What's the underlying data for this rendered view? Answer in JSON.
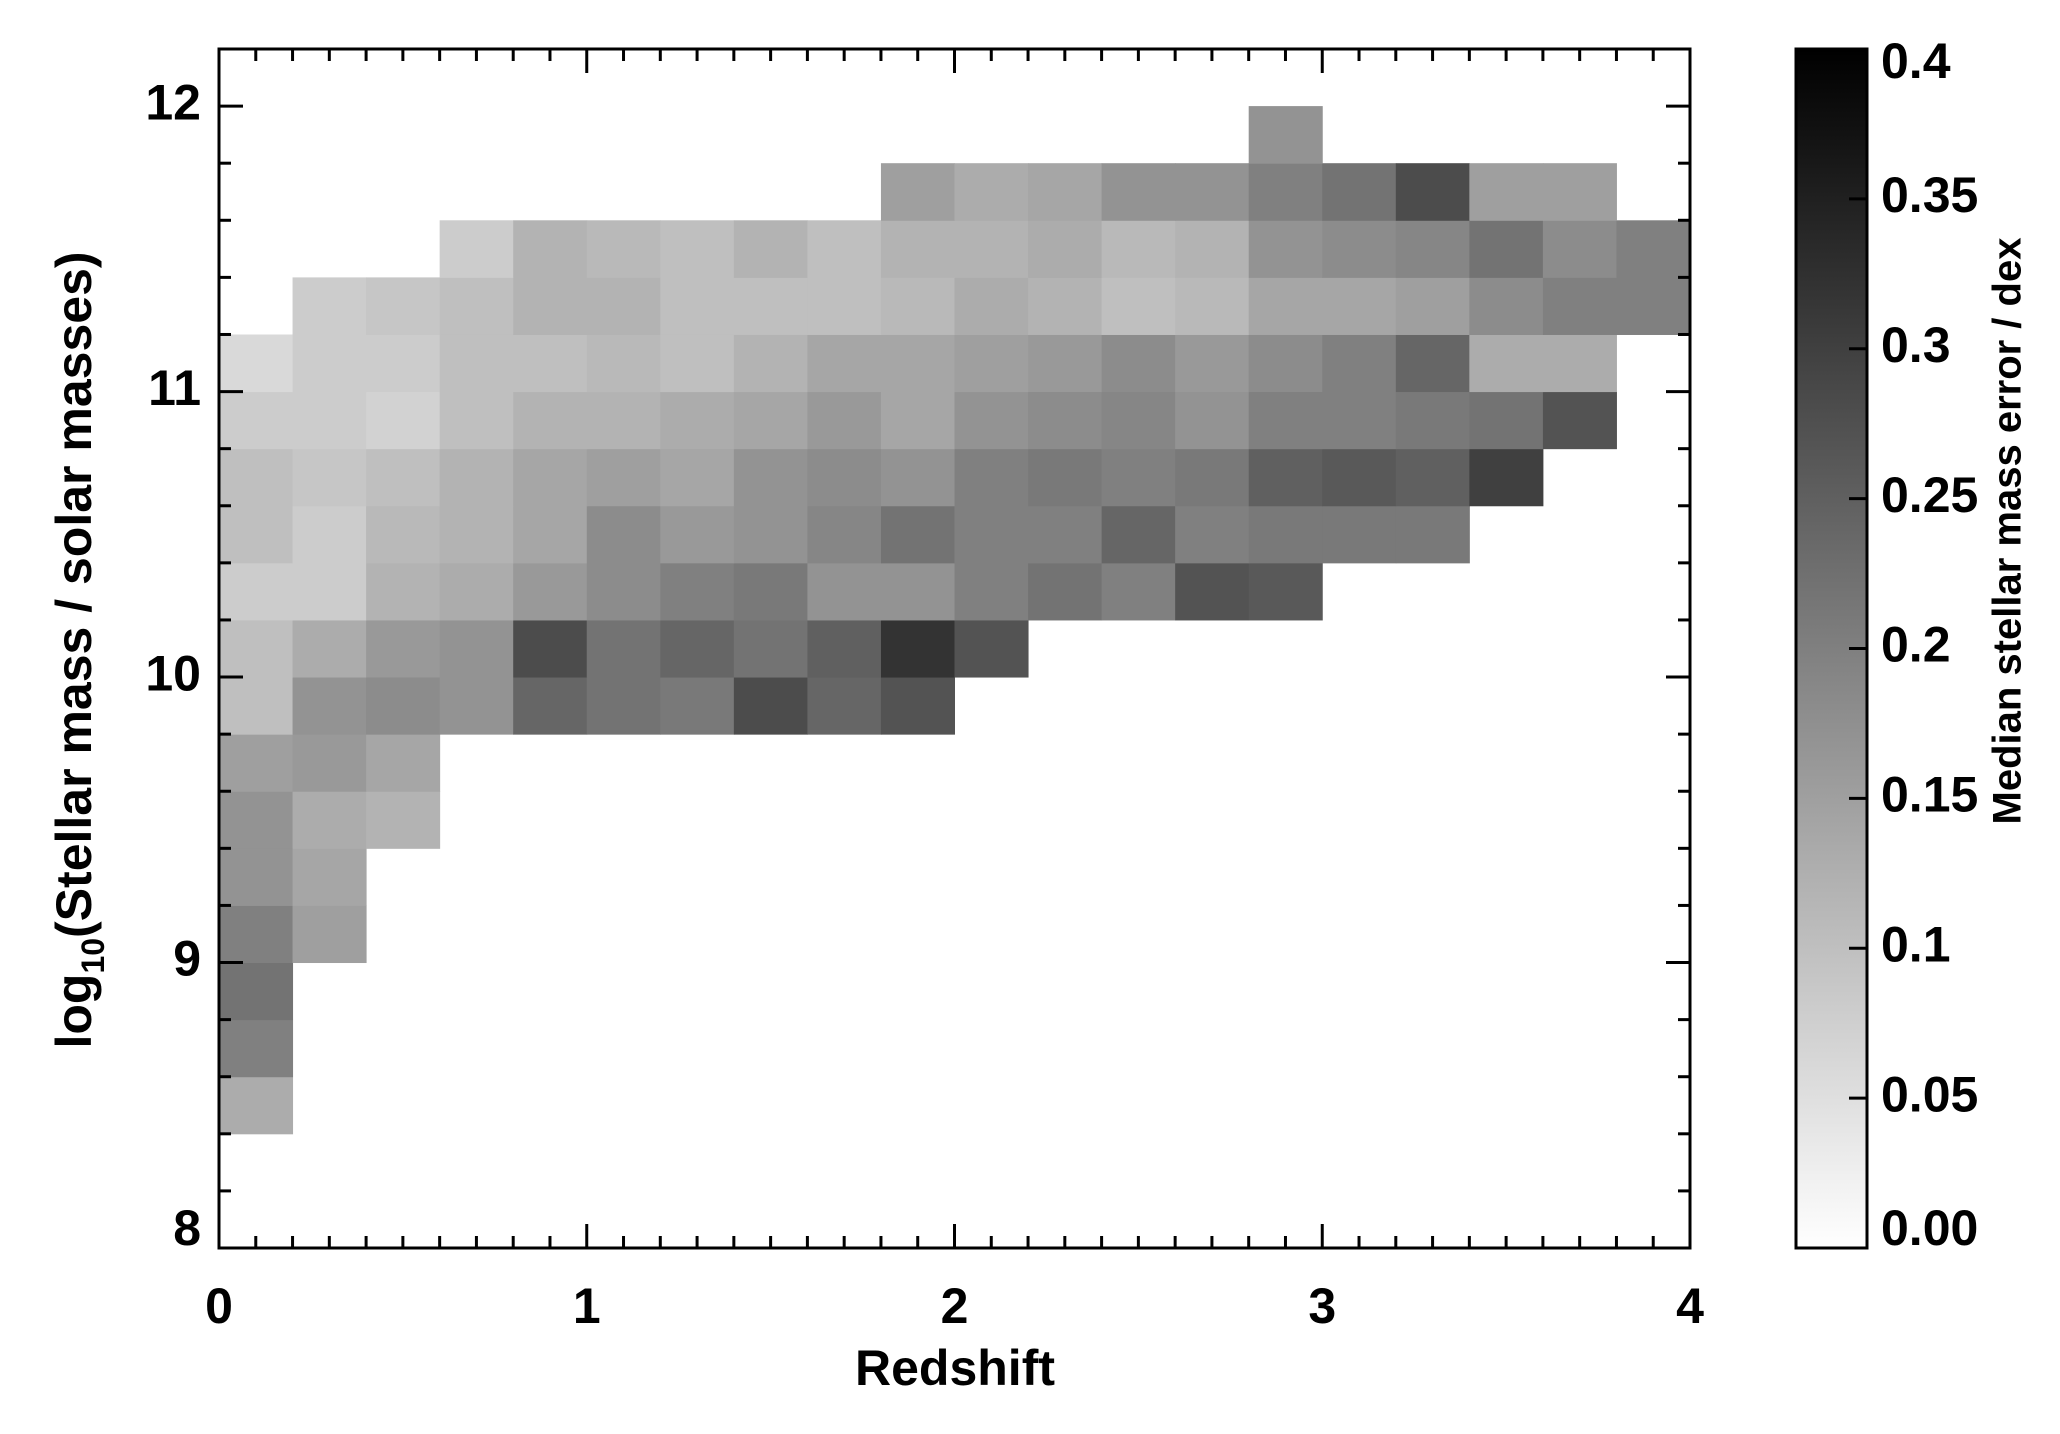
{
  "chart_data": {
    "type": "heatmap",
    "xlabel": "Redshift",
    "ylabel_parts": [
      "log",
      "10",
      "(Stellar mass / solar masses)"
    ],
    "xlim": [
      0,
      4
    ],
    "ylim": [
      8,
      12.2
    ],
    "xticks": [
      0,
      1,
      2,
      3,
      4
    ],
    "yticks": [
      8,
      9,
      10,
      11,
      12
    ],
    "xminorticks": [
      0.1,
      0.2,
      0.3,
      0.4,
      0.5,
      0.6,
      0.7,
      0.8,
      0.9,
      1.1,
      1.2,
      1.3,
      1.4,
      1.5,
      1.6,
      1.7,
      1.8,
      1.9,
      2.1,
      2.2,
      2.3,
      2.4,
      2.5,
      2.6,
      2.7,
      2.8,
      2.9,
      3.1,
      3.2,
      3.3,
      3.4,
      3.5,
      3.6,
      3.7,
      3.8,
      3.9
    ],
    "yminorticks": [
      8.2,
      8.4,
      8.6,
      8.8,
      9.2,
      9.4,
      9.6,
      9.8,
      10.2,
      10.4,
      10.6,
      10.8,
      11.2,
      11.4,
      11.6,
      11.8
    ],
    "x_edges": [
      0,
      0.2,
      0.4,
      0.6,
      0.8,
      1.0,
      1.2,
      1.4,
      1.6,
      1.8,
      2.0,
      2.2,
      2.4,
      2.6,
      2.8,
      3.0,
      3.2,
      3.4,
      3.6,
      3.8,
      4.0
    ],
    "y_edges": [
      8.4,
      8.6,
      8.8,
      9.0,
      9.2,
      9.4,
      9.6,
      9.8,
      10.0,
      10.2,
      10.4,
      10.6,
      10.8,
      11.0,
      11.2,
      11.4,
      11.6,
      11.8,
      12.0
    ],
    "values": [
      [
        0.13,
        null,
        null,
        null,
        null,
        null,
        null,
        null,
        null,
        null,
        null,
        null,
        null,
        null,
        null,
        null,
        null,
        null,
        null,
        null
      ],
      [
        0.2,
        null,
        null,
        null,
        null,
        null,
        null,
        null,
        null,
        null,
        null,
        null,
        null,
        null,
        null,
        null,
        null,
        null,
        null,
        null
      ],
      [
        0.22,
        null,
        null,
        null,
        null,
        null,
        null,
        null,
        null,
        null,
        null,
        null,
        null,
        null,
        null,
        null,
        null,
        null,
        null,
        null
      ],
      [
        0.2,
        0.15,
        null,
        null,
        null,
        null,
        null,
        null,
        null,
        null,
        null,
        null,
        null,
        null,
        null,
        null,
        null,
        null,
        null,
        null
      ],
      [
        0.17,
        0.14,
        null,
        null,
        null,
        null,
        null,
        null,
        null,
        null,
        null,
        null,
        null,
        null,
        null,
        null,
        null,
        null,
        null,
        null
      ],
      [
        0.17,
        0.13,
        0.12,
        null,
        null,
        null,
        null,
        null,
        null,
        null,
        null,
        null,
        null,
        null,
        null,
        null,
        null,
        null,
        null,
        null
      ],
      [
        0.15,
        0.16,
        0.14,
        null,
        null,
        null,
        null,
        null,
        null,
        null,
        null,
        null,
        null,
        null,
        null,
        null,
        null,
        null,
        null,
        null
      ],
      [
        0.1,
        0.17,
        0.18,
        0.17,
        0.24,
        0.22,
        0.21,
        0.28,
        0.24,
        0.27,
        null,
        null,
        null,
        null,
        null,
        null,
        null,
        null,
        null,
        null
      ],
      [
        0.1,
        0.13,
        0.16,
        0.17,
        0.28,
        0.22,
        0.24,
        0.22,
        0.25,
        0.32,
        0.27,
        null,
        null,
        null,
        null,
        null,
        null,
        null,
        null,
        null
      ],
      [
        0.08,
        0.08,
        0.12,
        0.13,
        0.16,
        0.18,
        0.2,
        0.21,
        0.17,
        0.17,
        0.2,
        0.22,
        0.2,
        0.27,
        0.26,
        null,
        null,
        null,
        null,
        null
      ],
      [
        0.1,
        0.08,
        0.11,
        0.12,
        0.14,
        0.18,
        0.16,
        0.17,
        0.19,
        0.22,
        0.2,
        0.2,
        0.24,
        0.2,
        0.21,
        0.21,
        0.21,
        null,
        null,
        null
      ],
      [
        0.1,
        0.09,
        0.1,
        0.12,
        0.14,
        0.15,
        0.14,
        0.17,
        0.18,
        0.17,
        0.2,
        0.21,
        0.2,
        0.21,
        0.25,
        0.26,
        0.25,
        0.3,
        null,
        null
      ],
      [
        0.08,
        0.08,
        0.07,
        0.1,
        0.12,
        0.12,
        0.13,
        0.14,
        0.16,
        0.14,
        0.17,
        0.18,
        0.19,
        0.17,
        0.2,
        0.2,
        0.21,
        0.22,
        0.27,
        null
      ],
      [
        0.06,
        0.08,
        0.08,
        0.1,
        0.1,
        0.11,
        0.1,
        0.12,
        0.14,
        0.14,
        0.15,
        0.16,
        0.18,
        0.16,
        0.18,
        0.2,
        0.24,
        0.13,
        0.13,
        null
      ],
      [
        null,
        0.08,
        0.09,
        0.1,
        0.12,
        0.12,
        0.1,
        0.1,
        0.1,
        0.11,
        0.13,
        0.12,
        0.1,
        0.11,
        0.14,
        0.14,
        0.15,
        0.18,
        0.2,
        0.2
      ],
      [
        null,
        null,
        null,
        0.08,
        0.12,
        0.11,
        0.1,
        0.12,
        0.1,
        0.12,
        0.12,
        0.13,
        0.11,
        0.12,
        0.17,
        0.18,
        0.19,
        0.22,
        0.18,
        0.2
      ],
      [
        null,
        null,
        null,
        null,
        null,
        null,
        null,
        null,
        null,
        0.15,
        0.13,
        0.14,
        0.17,
        0.17,
        0.2,
        0.22,
        0.28,
        0.15,
        0.15,
        null
      ],
      [
        null,
        null,
        null,
        null,
        null,
        null,
        null,
        null,
        null,
        null,
        null,
        null,
        null,
        null,
        0.17,
        null,
        null,
        null,
        null,
        null
      ]
    ],
    "colorbar": {
      "label": "Median stellar mass error / dex",
      "lim": [
        0,
        0.4
      ],
      "ticks": [
        {
          "value": 0,
          "label": "0.00"
        },
        0.05,
        0.1,
        0.15,
        0.2,
        0.25,
        0.3,
        0.35,
        0.4
      ],
      "colors": [
        "#ffffff",
        "#000000"
      ]
    }
  }
}
